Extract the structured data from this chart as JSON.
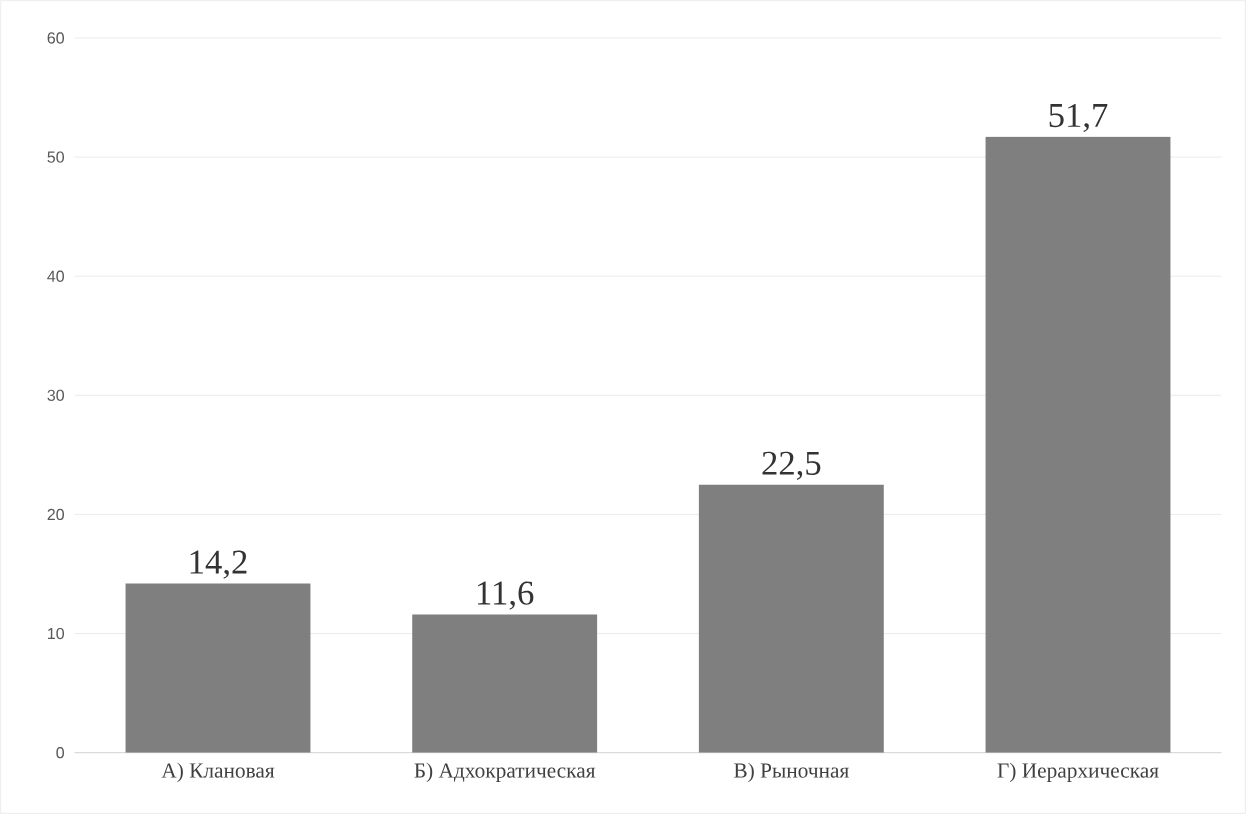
{
  "chart_data": {
    "type": "bar",
    "categories": [
      "А) Клановая",
      "Б) Адхократическая",
      "В) Рыночная",
      "Г) Иерархическая"
    ],
    "values": [
      14.2,
      11.6,
      22.5,
      51.7
    ],
    "value_labels": [
      "14,2",
      "11,6",
      "22,5",
      "51,7"
    ],
    "color": "#7f7f7f",
    "ylim": [
      0,
      60
    ],
    "yticks": [
      0,
      10,
      20,
      30,
      40,
      50,
      60
    ],
    "grid": "y"
  }
}
